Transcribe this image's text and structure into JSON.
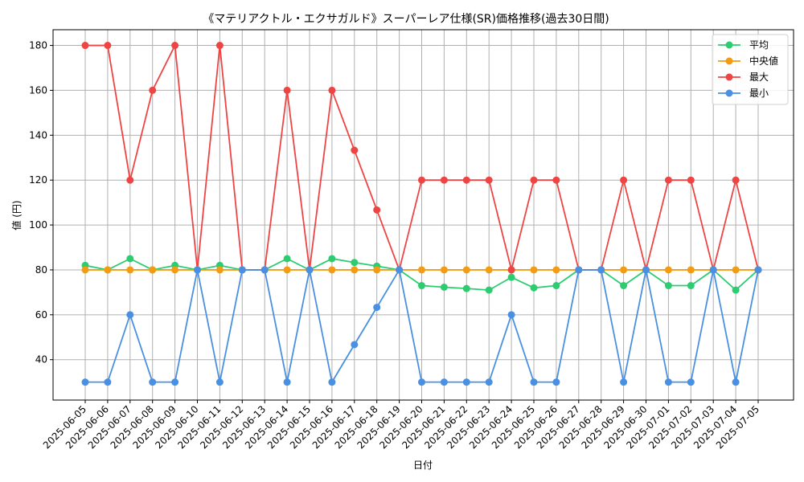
{
  "chart_data": {
    "type": "line",
    "title": "《マテリアクトル・エクサガルド》スーパーレア仕様(SR)価格推移(過去30日間)",
    "xlabel": "日付",
    "ylabel": "値 (円)",
    "ylim": [
      22,
      187
    ],
    "yticks": [
      40,
      60,
      80,
      100,
      120,
      140,
      160,
      180
    ],
    "grid": true,
    "legend_position": "top-right",
    "x": [
      "2025-06-05",
      "2025-06-06",
      "2025-06-07",
      "2025-06-08",
      "2025-06-09",
      "2025-06-10",
      "2025-06-11",
      "2025-06-12",
      "2025-06-13",
      "2025-06-14",
      "2025-06-15",
      "2025-06-16",
      "2025-06-17",
      "2025-06-18",
      "2025-06-19",
      "2025-06-20",
      "2025-06-21",
      "2025-06-22",
      "2025-06-23",
      "2025-06-24",
      "2025-06-25",
      "2025-06-26",
      "2025-06-27",
      "2025-06-28",
      "2025-06-29",
      "2025-06-30",
      "2025-07-01",
      "2025-07-02",
      "2025-07-03",
      "2025-07-04",
      "2025-07-05"
    ],
    "series": [
      {
        "name": "平均",
        "color": "#2ecc71",
        "values": [
          82,
          80,
          85,
          80,
          82,
          80,
          82,
          80,
          80,
          85,
          80,
          85,
          83.3,
          81.7,
          80,
          73,
          72.3,
          71.7,
          71,
          76.7,
          72,
          73,
          80,
          80,
          73,
          80,
          73,
          73,
          80,
          71,
          80
        ]
      },
      {
        "name": "中央値",
        "color": "#f39c12",
        "values": [
          80,
          80,
          80,
          80,
          80,
          80,
          80,
          80,
          80,
          80,
          80,
          80,
          80,
          80,
          80,
          80,
          80,
          80,
          80,
          80,
          80,
          80,
          80,
          80,
          80,
          80,
          80,
          80,
          80,
          80,
          80
        ]
      },
      {
        "name": "最大",
        "color": "#ef4444",
        "values": [
          180,
          180,
          120,
          160,
          180,
          80,
          180,
          80,
          80,
          160,
          80,
          160,
          133.3,
          106.7,
          80,
          120,
          120,
          120,
          120,
          80,
          120,
          120,
          80,
          80,
          120,
          80,
          120,
          120,
          80,
          120,
          80
        ]
      },
      {
        "name": "最小",
        "color": "#4a90e2",
        "values": [
          30,
          30,
          60,
          30,
          30,
          80,
          30,
          80,
          80,
          30,
          80,
          30,
          46.7,
          63.3,
          80,
          30,
          30,
          30,
          30,
          60,
          30,
          30,
          80,
          80,
          30,
          80,
          30,
          30,
          80,
          30,
          80
        ]
      }
    ]
  }
}
